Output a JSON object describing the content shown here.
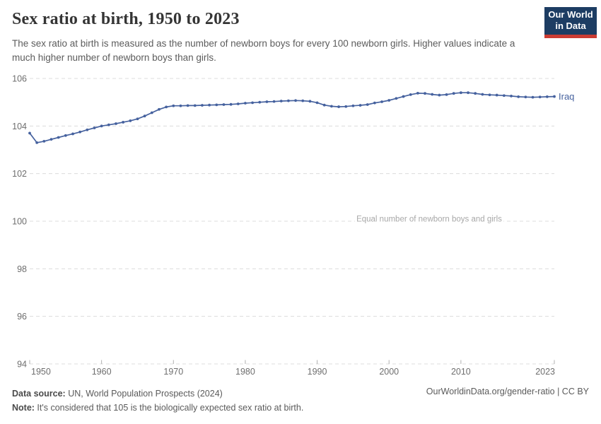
{
  "header": {
    "title": "Sex ratio at birth, 1950 to 2023",
    "subtitle": "The sex ratio at birth is measured as the number of newborn boys for every 100 newborn girls. Higher values indicate a much higher number of newborn boys than girls."
  },
  "logo": {
    "line1": "Our World",
    "line2": "in Data"
  },
  "chart_data": {
    "type": "line",
    "title": "Sex ratio at birth, 1950 to 2023",
    "xlabel": "",
    "ylabel": "",
    "ylim": [
      94,
      106
    ],
    "yticks": [
      94,
      96,
      98,
      100,
      102,
      104,
      106
    ],
    "xticks": [
      1950,
      1960,
      1970,
      1980,
      1990,
      2000,
      2010,
      2023
    ],
    "grid": "dashed-horizontal",
    "legend_position": "end-of-line-label",
    "x": [
      1950,
      1951,
      1952,
      1953,
      1954,
      1955,
      1956,
      1957,
      1958,
      1959,
      1960,
      1961,
      1962,
      1963,
      1964,
      1965,
      1966,
      1967,
      1968,
      1969,
      1970,
      1971,
      1972,
      1973,
      1974,
      1975,
      1976,
      1977,
      1978,
      1979,
      1980,
      1981,
      1982,
      1983,
      1984,
      1985,
      1986,
      1987,
      1988,
      1989,
      1990,
      1991,
      1992,
      1993,
      1994,
      1995,
      1996,
      1997,
      1998,
      1999,
      2000,
      2001,
      2002,
      2003,
      2004,
      2005,
      2006,
      2007,
      2008,
      2009,
      2010,
      2011,
      2012,
      2013,
      2014,
      2015,
      2016,
      2017,
      2018,
      2019,
      2020,
      2021,
      2022,
      2023
    ],
    "series": [
      {
        "name": "Iraq",
        "color": "#45619e",
        "values": [
          103.7,
          103.3,
          103.36,
          103.44,
          103.52,
          103.6,
          103.67,
          103.75,
          103.84,
          103.92,
          104.0,
          104.05,
          104.1,
          104.16,
          104.22,
          104.3,
          104.42,
          104.56,
          104.7,
          104.8,
          104.85,
          104.85,
          104.86,
          104.86,
          104.87,
          104.88,
          104.89,
          104.9,
          104.91,
          104.93,
          104.96,
          104.98,
          105.0,
          105.02,
          105.03,
          105.05,
          105.06,
          105.07,
          105.06,
          105.04,
          104.98,
          104.88,
          104.83,
          104.81,
          104.82,
          104.85,
          104.87,
          104.9,
          104.97,
          105.02,
          105.08,
          105.16,
          105.24,
          105.32,
          105.38,
          105.37,
          105.33,
          105.3,
          105.32,
          105.37,
          105.4,
          105.4,
          105.37,
          105.33,
          105.31,
          105.3,
          105.28,
          105.26,
          105.23,
          105.22,
          105.21,
          105.22,
          105.23,
          105.24
        ]
      }
    ],
    "annotation": {
      "text": "Equal number of newborn boys and girls",
      "y": 100
    }
  },
  "footer": {
    "datasource_label": "Data source:",
    "datasource_text": " UN, World Population Prospects (2024)",
    "note_label": "Note:",
    "note_text": " It's considered that 105 is the biologically expected sex ratio at birth.",
    "right_text": "OurWorldinData.org/gender-ratio | CC BY"
  },
  "colors": {
    "line": "#45619e",
    "grid": "#dcdcdc",
    "tick": "#b0b0b0",
    "axis_label": "#6e6e6e",
    "annotation_text": "#a8a8a8",
    "logo_navy": "#1d3d63",
    "logo_red": "#cb3c33"
  }
}
